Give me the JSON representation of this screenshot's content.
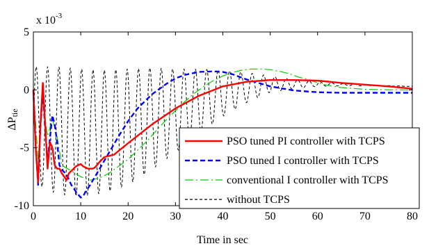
{
  "chart_data": {
    "type": "line",
    "xlabel": "Time in sec",
    "ylabel_main": "ΔP",
    "ylabel_sub": "tie",
    "exponent_label": "x 10",
    "exponent_power": "-3",
    "xlim": [
      0,
      80
    ],
    "ylim": [
      -10,
      5
    ],
    "xticks": [
      0,
      10,
      20,
      30,
      40,
      50,
      60,
      70,
      80
    ],
    "yticks": [
      -10,
      -5,
      0,
      5
    ],
    "legend_position": "lower-right",
    "series": [
      {
        "name": "PSO tuned PI controller with TCPS",
        "color": "#ff0000",
        "style": "solid",
        "x": [
          0,
          0.5,
          1,
          1.5,
          2,
          2.5,
          3,
          3.5,
          4,
          4.5,
          5,
          5.5,
          6,
          6.5,
          7,
          7.5,
          8,
          8.5,
          9,
          9.5,
          10,
          10.5,
          11,
          11.5,
          12,
          12.5,
          13,
          14,
          15,
          17,
          20,
          25,
          30,
          35,
          40,
          45,
          50,
          55,
          60,
          65,
          70,
          75,
          80
        ],
        "y": [
          0,
          -5,
          -8,
          -3,
          0.6,
          -3,
          -6.8,
          -4.5,
          -5,
          -6.5,
          -6.8,
          -6.8,
          -7.2,
          -7.5,
          -7.8,
          -7.2,
          -7.0,
          -6.8,
          -6.6,
          -6.5,
          -6.4,
          -6.6,
          -6.7,
          -6.8,
          -6.8,
          -6.8,
          -6.7,
          -6.2,
          -5.8,
          -5.6,
          -4.6,
          -3.0,
          -1.6,
          -0.5,
          0.3,
          0.7,
          0.85,
          0.85,
          0.8,
          0.6,
          0.45,
          0.3,
          0.1
        ]
      },
      {
        "name": "PSO tuned I controller with TCPS",
        "color": "#0000ff",
        "style": "dashed",
        "x": [
          0,
          0.5,
          1,
          1.5,
          2,
          2.5,
          3,
          3.5,
          4,
          4.5,
          5,
          5.5,
          6,
          7,
          8,
          9,
          10,
          10.5,
          11,
          12,
          14,
          16,
          18,
          20,
          22,
          25,
          28,
          30,
          32,
          35,
          38,
          40,
          42,
          45,
          50,
          55,
          60,
          65,
          70,
          75,
          80
        ],
        "y": [
          0,
          -5,
          -8.2,
          -3,
          0,
          -3.5,
          -6,
          -4.2,
          -2.2,
          -3,
          -4.5,
          -6.5,
          -6.9,
          -7.3,
          -8.2,
          -8.8,
          -9.3,
          -9.2,
          -8.8,
          -8.2,
          -6.8,
          -5.4,
          -4.0,
          -2.7,
          -1.6,
          -0.4,
          0.5,
          1.0,
          1.3,
          1.55,
          1.6,
          1.55,
          1.35,
          0.9,
          0.3,
          -0.05,
          -0.2,
          -0.25,
          -0.25,
          -0.25,
          -0.25
        ]
      },
      {
        "name": "conventional I controller with TCPS",
        "color": "#00cc00",
        "style": "dashdot",
        "x": [
          0,
          1,
          2,
          3,
          4,
          5,
          6,
          8,
          10,
          12,
          14,
          16,
          18,
          20,
          22,
          24,
          26,
          28,
          30,
          32,
          34,
          36,
          38,
          40,
          42,
          44,
          46,
          48,
          50,
          52,
          54,
          56,
          58,
          60,
          62,
          65,
          70,
          75,
          80
        ],
        "y": [
          0,
          -6,
          -1,
          -4,
          -2.5,
          -4,
          -6.5,
          -7,
          -7.5,
          -7.8,
          -7.6,
          -7.2,
          -6.6,
          -6.0,
          -5.2,
          -4.4,
          -3.5,
          -2.6,
          -1.8,
          -1.0,
          -0.3,
          0.3,
          0.8,
          1.2,
          1.5,
          1.7,
          1.8,
          1.8,
          1.75,
          1.6,
          1.4,
          1.1,
          0.9,
          0.6,
          0.4,
          0.2,
          0.05,
          0,
          0
        ]
      },
      {
        "name": "without TCPS",
        "color": "#000000",
        "style": "dotted",
        "oscillating": true,
        "period": 2.4,
        "x": [
          0,
          5,
          10,
          15,
          20,
          25,
          30,
          35,
          40,
          45,
          50,
          55,
          60,
          65,
          70,
          75,
          80
        ],
        "center": [
          -3,
          -3.5,
          -3.7,
          -3.6,
          -3.2,
          -2.5,
          -1.8,
          -1.0,
          -0.3,
          0.2,
          0.5,
          0.5,
          0.5,
          0.45,
          0.4,
          0.35,
          0.3
        ],
        "amplitude": [
          5,
          5.5,
          5.5,
          5.3,
          5.0,
          4.4,
          3.6,
          2.8,
          2.0,
          1.3,
          0.7,
          0.4,
          0.2,
          0.1,
          0.05,
          0.02,
          0.01
        ]
      }
    ]
  }
}
